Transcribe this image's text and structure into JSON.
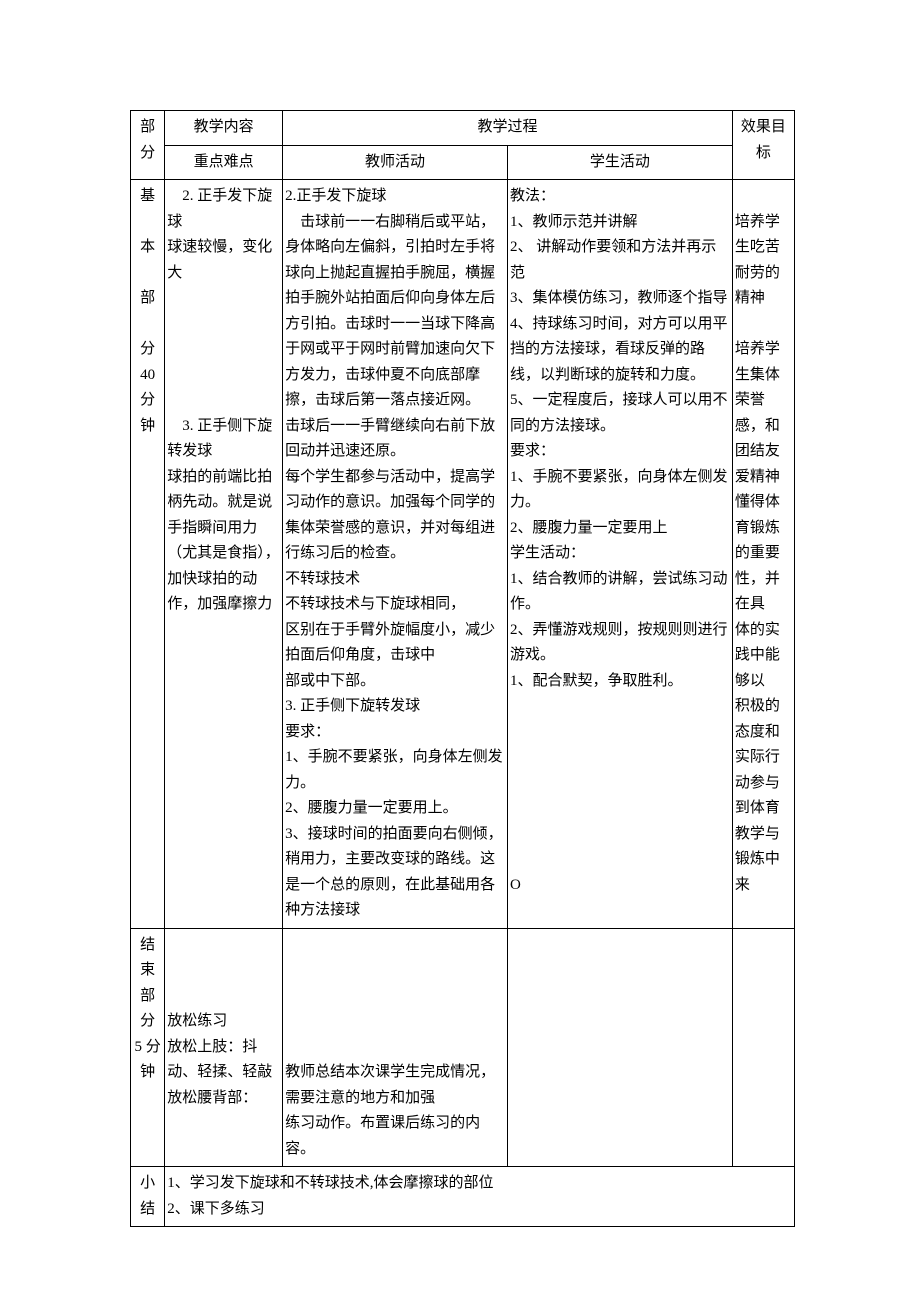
{
  "headers": {
    "part": "部分",
    "content": "教学内容",
    "keypoints": "重点难点",
    "process": "教学过程",
    "teacher": "教师活动",
    "student": "学生活动",
    "effect": "效果目标"
  },
  "row1": {
    "part": "基\n\n本\n\n部\n\n分\n40\n分\n钟",
    "keypoints": "　2. 正手发下旋球\n球速较慢，变化大\n\n\n\n\n\n　3. 正手侧下旋转发球\n球拍的前端比拍柄先动。就是说手指瞬间用力（尤其是食指），加快球拍的动作，加强摩擦力",
    "teacher": "2.正手发下旋球\n　击球前一一右脚稍后或平站，身体略向左偏斜，引拍时左手将球向上抛起直握拍手腕屈，横握拍手腕外站拍面后仰向身体左后方引拍。击球时一一当球下降高于网或平于网时前臂加速向欠下方发力，击球仲夏不向底部摩擦，击球后第一落点接近网。\n击球后一一手臂继续向右前下放回动并迅速还原。\n每个学生都参与活动中，提高学习动作的意识。加强每个同学的集体荣誉感的意识，并对每组进行练习后的检查。\n不转球技术\n不转球技术与下旋球相同，\n区别在于手臂外旋幅度小，减少拍面后仰角度，击球中\n部或中下部。\n3. 正手侧下旋转发球\n要求：\n1、手腕不要紧张，向身体左侧发力。\n2、腰腹力量一定要用上。\n3、接球时间的拍面要向右侧倾，稍用力，主要改变球的路线。这是一个总的原则，在此基础用各种方法接球",
    "student": "教法：\n1、教师示范并讲解\n2、 讲解动作要领和方法并再示范\n3、集体模仿练习，教师逐个指导\n4、持球练习时间，对方可以用平挡的方法接球，看球反弹的路线，以判断球的旋转和力度。\n5、一定程度后，接球人可以用不同的方法接球。\n要求：\n1、手腕不要紧张，向身体左侧发力。\n2、腰腹力量一定要用上\n学生活动：\n1、结合教师的讲解，尝试练习动作。\n2、弄懂游戏规则，按规则则进行游戏。\n1、配合默契，争取胜利。\n\n\n\n\n\n\n\nO",
    "effect": "\n培养学生吃苦耐劳的　精神\n\n培养学生集体荣誉感，和团结友爱精神懂得体育锻炼的重要性，并　在具　体的实践中能够以\n积极的态度和\n实际行动参与到体育\n教学与锻炼中来"
  },
  "row2": {
    "part": "结束部分　5 分钟",
    "keypoints": "\n\n\n放松练习\n放松上肢：抖动、轻揉、轻敲放松腰背部：",
    "teacher": "\n\n\n\n\n教师总结本次课学生完成情况，需要注意的地方和加强\n练习动作。布置课后练习的内容。",
    "student": "",
    "effect": ""
  },
  "summary": {
    "label": "小结",
    "text": "1、学习发下旋球和不转球技术,体会摩擦球的部位\n2、课下多练习"
  }
}
